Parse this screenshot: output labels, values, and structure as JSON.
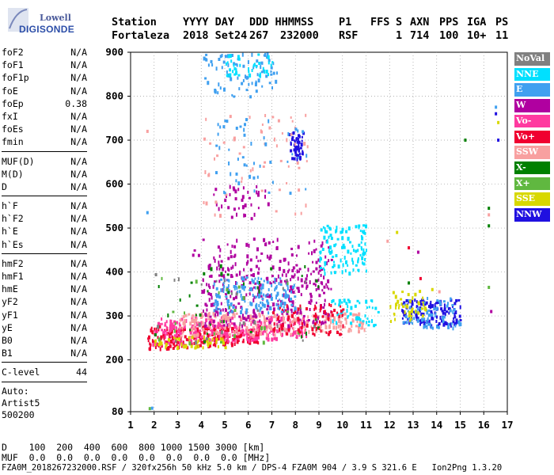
{
  "logo": {
    "line1": "Lowell",
    "line2": "DIGISONDE"
  },
  "header": {
    "row1": [
      "Station",
      "YYYY DAY",
      "DDD HHMMSS",
      "P1",
      "FFS",
      "S",
      "AXN",
      "PPS",
      "IGA",
      "PS"
    ],
    "row2": [
      "Fortaleza",
      "2018 Set24",
      "267",
      "232000",
      "RSF",
      "1",
      "714",
      "100",
      "10+",
      "11"
    ]
  },
  "params": {
    "group1": [
      {
        "name": "foF2",
        "value": "N/A"
      },
      {
        "name": "foF1",
        "value": "N/A"
      },
      {
        "name": "foF1p",
        "value": "N/A"
      },
      {
        "name": "foE",
        "value": "N/A"
      },
      {
        "name": "foEp",
        "value": "0.38"
      },
      {
        "name": "fxI",
        "value": "N/A"
      },
      {
        "name": "foEs",
        "value": "N/A"
      },
      {
        "name": "fmin",
        "value": "N/A"
      }
    ],
    "group2": [
      {
        "name": "MUF(D)",
        "value": "N/A"
      },
      {
        "name": "M(D)",
        "value": "N/A"
      },
      {
        "name": "D",
        "value": "N/A"
      }
    ],
    "group3": [
      {
        "name": "h`F",
        "value": "N/A"
      },
      {
        "name": "h`F2",
        "value": "N/A"
      },
      {
        "name": "h`E",
        "value": "N/A"
      },
      {
        "name": "h`Es",
        "value": "N/A"
      }
    ],
    "group4": [
      {
        "name": "hmF2",
        "value": "N/A"
      },
      {
        "name": "hmF1",
        "value": "N/A"
      },
      {
        "name": "hmE",
        "value": "N/A"
      },
      {
        "name": "yF2",
        "value": "N/A"
      },
      {
        "name": "yF1",
        "value": "N/A"
      },
      {
        "name": "yE",
        "value": "N/A"
      },
      {
        "name": "B0",
        "value": "N/A"
      },
      {
        "name": "B1",
        "value": "N/A"
      }
    ],
    "clevel": {
      "name": "C-level",
      "value": "44"
    },
    "auto": [
      "Auto:",
      "Artist5",
      "500200"
    ]
  },
  "legend": [
    {
      "label": "NoVal",
      "color": "#808080"
    },
    {
      "label": "NNE",
      "color": "#00e0ff"
    },
    {
      "label": "E",
      "color": "#40a0f0"
    },
    {
      "label": "W",
      "color": "#b000a0"
    },
    {
      "label": "Vo-",
      "color": "#ff3aa0"
    },
    {
      "label": "Vo+",
      "color": "#f00030"
    },
    {
      "label": "SSW",
      "color": "#f8a0a0"
    },
    {
      "label": "X-",
      "color": "#008000"
    },
    {
      "label": "X+",
      "color": "#60b840"
    },
    {
      "label": "SSE",
      "color": "#d8d800"
    },
    {
      "label": "NNW",
      "color": "#2010e0"
    }
  ],
  "bottom": {
    "d_row": "D    100  200  400  600  800 1000 1500 3000 [km]",
    "muf_row": "MUF  0.0  0.0  0.0  0.0  0.0  0.0  0.0  0.0 [MHz]",
    "footer": "FZA0M_2018267232000.RSF / 320fx256h 50 kHz 5.0 km / DPS-4 FZA0M 904 / 3.9 S 321.6 E   Ion2Png 1.3.20"
  },
  "chart_data": {
    "type": "scatter",
    "xlim": [
      1,
      17
    ],
    "ylim": [
      80,
      900
    ],
    "xticks": [
      1,
      2,
      3,
      4,
      5,
      6,
      7,
      8,
      9,
      10,
      11,
      12,
      13,
      14,
      15,
      16,
      17
    ],
    "yticks": [
      80,
      200,
      300,
      400,
      500,
      600,
      700,
      800,
      900
    ],
    "xlabel": "",
    "ylabel": "",
    "regions": [
      {
        "color": "#f00030",
        "f": [
          1.7,
          6.5
        ],
        "h": [
          225,
          280
        ],
        "count": 260
      },
      {
        "color": "#ff3aa0",
        "f": [
          1.9,
          8.5
        ],
        "h": [
          235,
          300
        ],
        "count": 300
      },
      {
        "color": "#f8a0a0",
        "f": [
          3.0,
          11.0
        ],
        "h": [
          250,
          310
        ],
        "count": 260
      },
      {
        "color": "#d8d800",
        "f": [
          2.0,
          5.0
        ],
        "h": [
          230,
          255
        ],
        "count": 50
      },
      {
        "color": "#b000a0",
        "f": [
          4.0,
          9.5
        ],
        "h": [
          280,
          440
        ],
        "count": 320
      },
      {
        "color": "#b000a0",
        "f": [
          3.5,
          9.5
        ],
        "h": [
          440,
          480
        ],
        "count": 40
      },
      {
        "color": "#40a0f0",
        "f": [
          4.5,
          8.0
        ],
        "h": [
          310,
          390
        ],
        "count": 160
      },
      {
        "color": "#00e0ff",
        "f": [
          9.0,
          11.0
        ],
        "h": [
          400,
          510
        ],
        "count": 110
      },
      {
        "color": "#00e0ff",
        "f": [
          9.5,
          11.5
        ],
        "h": [
          280,
          340
        ],
        "count": 50
      },
      {
        "color": "#2010e0",
        "f": [
          12.5,
          15.0
        ],
        "h": [
          280,
          340
        ],
        "count": 140
      },
      {
        "color": "#40a0f0",
        "f": [
          12.5,
          15.0
        ],
        "h": [
          275,
          345
        ],
        "count": 70
      },
      {
        "color": "#d8d800",
        "f": [
          12.0,
          13.5
        ],
        "h": [
          290,
          360
        ],
        "count": 50
      },
      {
        "color": "#2010e0",
        "f": [
          7.7,
          8.3
        ],
        "h": [
          660,
          720
        ],
        "count": 50
      },
      {
        "color": "#40a0f0",
        "f": [
          4.0,
          7.2
        ],
        "h": [
          800,
          900
        ],
        "count": 80
      },
      {
        "color": "#00e0ff",
        "f": [
          5.0,
          7.0
        ],
        "h": [
          850,
          900
        ],
        "count": 40
      },
      {
        "color": "#b000a0",
        "f": [
          4.5,
          7.0
        ],
        "h": [
          520,
          600
        ],
        "count": 40
      },
      {
        "color": "#f8a0a0",
        "f": [
          4.0,
          8.5
        ],
        "h": [
          530,
          760
        ],
        "count": 60
      },
      {
        "color": "#40a0f0",
        "f": [
          4.5,
          8.5
        ],
        "h": [
          580,
          760
        ],
        "count": 50
      },
      {
        "color": "#008000",
        "f": [
          2.0,
          9.0
        ],
        "h": [
          240,
          420
        ],
        "count": 35
      },
      {
        "color": "#60b840",
        "f": [
          2.0,
          9.0
        ],
        "h": [
          240,
          400
        ],
        "count": 25
      },
      {
        "color": "#808080",
        "f": [
          2.0,
          9.0
        ],
        "h": [
          240,
          400
        ],
        "count": 25
      },
      {
        "color": "#f00030",
        "f": [
          7.0,
          10.0
        ],
        "h": [
          260,
          330
        ],
        "count": 80
      }
    ],
    "points": [
      {
        "f": 1.7,
        "h": 720,
        "color": "#f8a0a0"
      },
      {
        "f": 1.7,
        "h": 535,
        "color": "#40a0f0"
      },
      {
        "f": 1.8,
        "h": 87,
        "color": "#60b840"
      },
      {
        "f": 1.9,
        "h": 88,
        "color": "#40a0f0"
      },
      {
        "f": 15.2,
        "h": 700,
        "color": "#008000"
      },
      {
        "f": 16.2,
        "h": 545,
        "color": "#008000"
      },
      {
        "f": 16.2,
        "h": 530,
        "color": "#f8a0a0"
      },
      {
        "f": 16.2,
        "h": 505,
        "color": "#008000"
      },
      {
        "f": 16.2,
        "h": 365,
        "color": "#60b840"
      },
      {
        "f": 16.3,
        "h": 310,
        "color": "#b000a0"
      },
      {
        "f": 16.5,
        "h": 775,
        "color": "#40a0f0"
      },
      {
        "f": 16.5,
        "h": 760,
        "color": "#2010e0"
      },
      {
        "f": 16.6,
        "h": 740,
        "color": "#d8d800"
      },
      {
        "f": 16.6,
        "h": 700,
        "color": "#2010e0"
      },
      {
        "f": 12.3,
        "h": 490,
        "color": "#d8d800"
      },
      {
        "f": 12.8,
        "h": 455,
        "color": "#f00030"
      },
      {
        "f": 13.2,
        "h": 445,
        "color": "#b000a0"
      },
      {
        "f": 11.9,
        "h": 470,
        "color": "#f8a0a0"
      },
      {
        "f": 13.8,
        "h": 360,
        "color": "#d8d800"
      },
      {
        "f": 14.1,
        "h": 355,
        "color": "#f8a0a0"
      },
      {
        "f": 12.8,
        "h": 375,
        "color": "#008000"
      },
      {
        "f": 13.3,
        "h": 385,
        "color": "#f00030"
      }
    ]
  }
}
